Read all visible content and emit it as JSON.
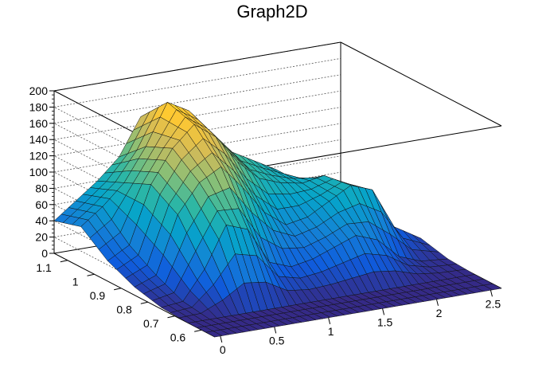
{
  "chart_data": {
    "type": "surface",
    "title": "Graph2D",
    "xlabel": "",
    "ylabel": "",
    "zlabel": "",
    "x_ticks": [
      "0",
      "0.5",
      "1",
      "1.5",
      "2",
      "2.5"
    ],
    "x_tick_values": [
      0,
      0.5,
      1,
      1.5,
      2,
      2.5
    ],
    "y_ticks": [
      "0.6",
      "0.7",
      "0.8",
      "0.9",
      "1",
      "1.1"
    ],
    "y_tick_values": [
      0.6,
      0.7,
      0.8,
      0.9,
      1.0,
      1.1
    ],
    "z_ticks": [
      "0",
      "20",
      "40",
      "60",
      "80",
      "100",
      "120",
      "140",
      "160",
      "180",
      "200"
    ],
    "z_tick_values": [
      0,
      20,
      40,
      60,
      80,
      100,
      120,
      140,
      160,
      180,
      200
    ],
    "xlim": [
      -0.05,
      2.6
    ],
    "ylim": [
      0.55,
      1.15
    ],
    "zlim": [
      0,
      200
    ],
    "grid": true,
    "colormap": "parula",
    "colors": [
      "#352a87",
      "#0f5cdd",
      "#1481d6",
      "#06a4ca",
      "#2eb7a4",
      "#87bf77",
      "#d1bb59",
      "#fec832",
      "#f9fb0e"
    ],
    "surface_x": [
      -0.05,
      0.15,
      0.35,
      0.55,
      0.75,
      0.95,
      1.15,
      1.35,
      1.55,
      1.75,
      1.95,
      2.15,
      2.35,
      2.6
    ],
    "surface_y": [
      0.55,
      0.65,
      0.75,
      0.85,
      0.95,
      1.05,
      1.15
    ],
    "surface_z": [
      [
        0,
        0,
        0,
        0,
        0,
        0,
        0,
        0,
        0,
        0,
        0,
        0,
        0,
        0
      ],
      [
        0,
        0,
        0,
        0,
        0,
        0,
        0,
        0,
        0,
        0,
        0,
        0,
        0,
        0
      ],
      [
        2,
        5,
        40,
        90,
        80,
        35,
        25,
        30,
        40,
        50,
        40,
        15,
        5,
        2
      ],
      [
        10,
        20,
        90,
        125,
        140,
        110,
        75,
        55,
        60,
        75,
        90,
        80,
        30,
        10
      ],
      [
        25,
        40,
        110,
        150,
        175,
        155,
        120,
        95,
        85,
        80,
        85,
        70,
        20,
        5
      ],
      [
        50,
        70,
        95,
        135,
        185,
        170,
        140,
        110,
        95,
        80,
        60,
        30,
        10,
        0
      ],
      [
        40,
        60,
        80,
        105,
        150,
        135,
        110,
        90,
        80,
        70,
        50,
        25,
        10,
        0
      ]
    ]
  }
}
